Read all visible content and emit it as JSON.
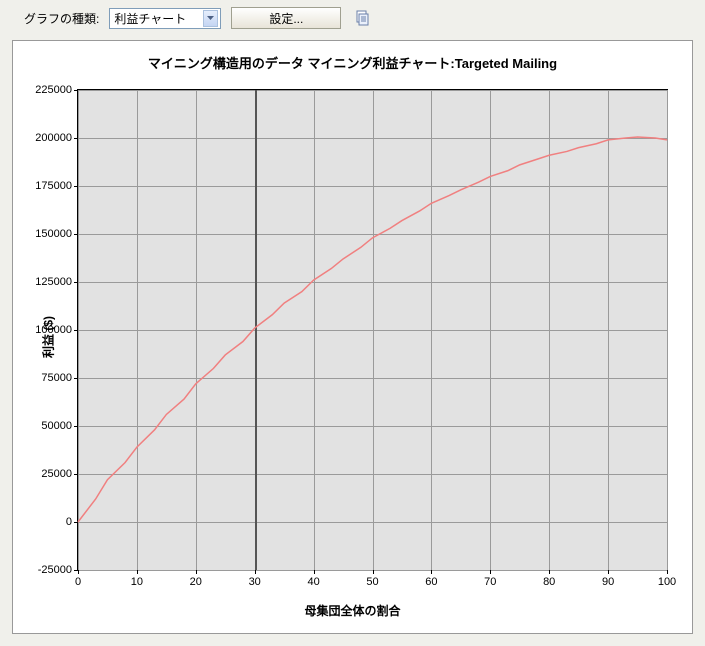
{
  "toolbar": {
    "label": "グラフの種類:",
    "dropdown_value": "利益チャート",
    "settings_label": "設定..."
  },
  "chart": {
    "type": "line",
    "title": "マイニング構造用のデータ マイニング利益チャート:Targeted Mailing",
    "x_label": "母集団全体の割合",
    "y_label": "利益 ($)",
    "xlim": [
      0,
      100
    ],
    "ylim": [
      -25000,
      225000
    ],
    "x_ticks": [
      0,
      10,
      20,
      30,
      40,
      50,
      60,
      70,
      80,
      90,
      100
    ],
    "y_ticks": [
      -25000,
      0,
      25000,
      50000,
      75000,
      100000,
      125000,
      150000,
      175000,
      200000,
      225000
    ],
    "y_tick_labels": [
      "-25000",
      "0",
      "25000",
      "50000",
      "75000",
      "100000",
      "125000",
      "150000",
      "175000",
      "200000",
      "225000"
    ],
    "background_color": "#e2e2e2",
    "grid_color": "#9a9a9a",
    "line_color": "#f08080",
    "line_width": 1.5,
    "vertical_marker_x": 30,
    "vertical_marker_color": "#555555",
    "series": {
      "x": [
        0,
        3,
        5,
        8,
        10,
        13,
        15,
        18,
        20,
        23,
        25,
        28,
        30,
        33,
        35,
        38,
        40,
        43,
        45,
        48,
        50,
        53,
        55,
        58,
        60,
        63,
        65,
        68,
        70,
        73,
        75,
        78,
        80,
        83,
        85,
        88,
        90,
        93,
        95,
        98,
        100
      ],
      "y": [
        0,
        12000,
        22000,
        31000,
        39000,
        48000,
        56000,
        64000,
        72000,
        80000,
        87000,
        94000,
        101000,
        108000,
        114000,
        120000,
        126000,
        132000,
        137000,
        143000,
        148000,
        153000,
        157000,
        162000,
        166000,
        170000,
        173000,
        177000,
        180000,
        183000,
        186000,
        189000,
        191000,
        193000,
        195000,
        197000,
        199000,
        200000,
        200500,
        200000,
        199000
      ]
    },
    "title_fontsize": 13,
    "label_fontsize": 12,
    "tick_fontsize": 11
  }
}
